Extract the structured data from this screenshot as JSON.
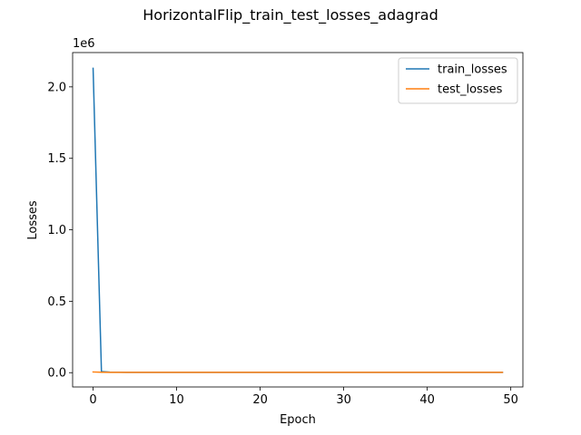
{
  "chart_data": {
    "type": "line",
    "title": "HorizontalFlip_train_test_losses_adagrad",
    "xlabel": "Epoch",
    "ylabel": "Losses",
    "y_offset_label": "1e6",
    "xlim": [
      -2.45,
      51.45
    ],
    "ylim": [
      -100000,
      2240000
    ],
    "xticks": [
      0,
      10,
      20,
      30,
      40,
      50
    ],
    "xtick_labels": [
      "0",
      "10",
      "20",
      "30",
      "40",
      "50"
    ],
    "yticks": [
      0,
      500000,
      1000000,
      1500000,
      2000000
    ],
    "ytick_labels": [
      "0.0",
      "0.5",
      "1.0",
      "1.5",
      "2.0"
    ],
    "grid": false,
    "legend_position": "upper right",
    "series": [
      {
        "name": "train_losses",
        "color": "#1f77b4",
        "x": [
          0,
          1,
          2,
          3,
          4,
          5,
          6,
          7,
          8,
          9,
          10,
          11,
          12,
          13,
          14,
          15,
          16,
          17,
          18,
          19,
          20,
          21,
          22,
          23,
          24,
          25,
          26,
          27,
          28,
          29,
          30,
          31,
          32,
          33,
          34,
          35,
          36,
          37,
          38,
          39,
          40,
          41,
          42,
          43,
          44,
          45,
          46,
          47,
          48,
          49
        ],
        "values": [
          2130000,
          8000,
          4000,
          3000,
          2500,
          2000,
          2000,
          2000,
          2000,
          2000,
          2000,
          2000,
          2000,
          2000,
          2000,
          2000,
          2000,
          2000,
          2000,
          2000,
          2000,
          2000,
          2000,
          2000,
          2000,
          2000,
          2000,
          2000,
          2000,
          2000,
          2000,
          2000,
          2000,
          2000,
          2000,
          2000,
          2000,
          2000,
          2000,
          2000,
          2000,
          2000,
          2000,
          2000,
          2000,
          2000,
          2000,
          2000,
          2000,
          2000
        ]
      },
      {
        "name": "test_losses",
        "color": "#ff7f0e",
        "x": [
          0,
          1,
          2,
          3,
          4,
          5,
          6,
          7,
          8,
          9,
          10,
          11,
          12,
          13,
          14,
          15,
          16,
          17,
          18,
          19,
          20,
          21,
          22,
          23,
          24,
          25,
          26,
          27,
          28,
          29,
          30,
          31,
          32,
          33,
          34,
          35,
          36,
          37,
          38,
          39,
          40,
          41,
          42,
          43,
          44,
          45,
          46,
          47,
          48,
          49
        ],
        "values": [
          5000,
          3000,
          2000,
          2000,
          2000,
          2000,
          2000,
          2000,
          2000,
          2000,
          2000,
          2000,
          2000,
          2000,
          2000,
          2000,
          2000,
          2000,
          2000,
          2000,
          2000,
          2000,
          2000,
          2000,
          2000,
          2000,
          2000,
          2000,
          2000,
          2000,
          2000,
          2000,
          2000,
          2000,
          2000,
          2000,
          2000,
          2000,
          2000,
          2000,
          2000,
          2000,
          2000,
          2000,
          2000,
          2000,
          2000,
          2000,
          2000,
          2000
        ]
      }
    ]
  }
}
